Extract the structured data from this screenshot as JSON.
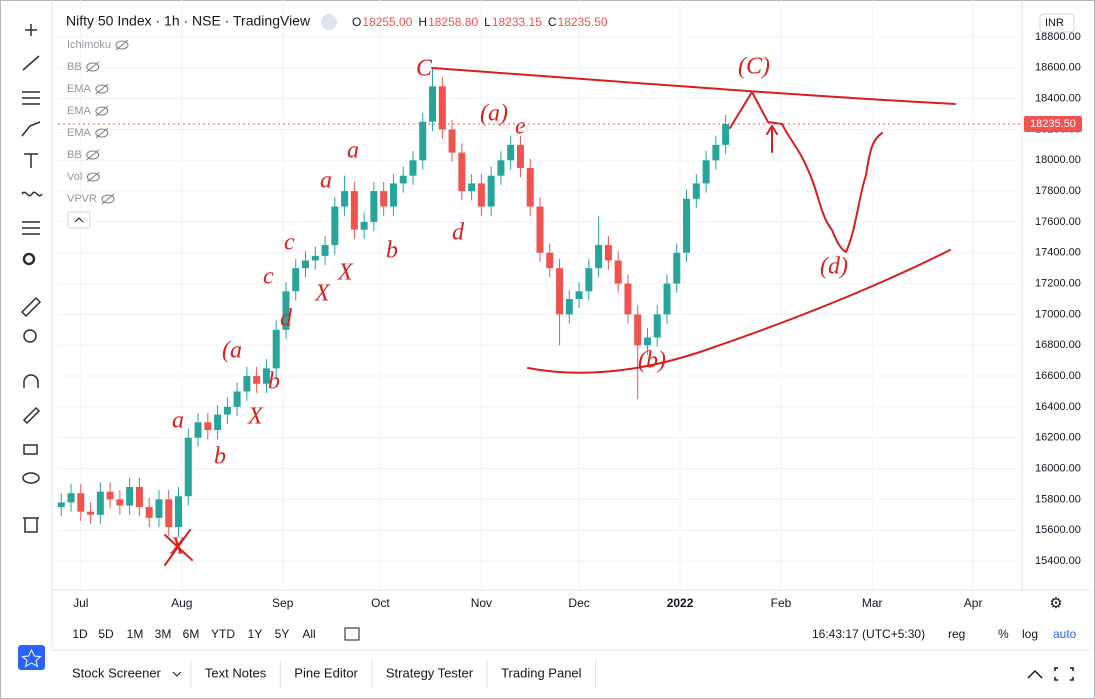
{
  "header": {
    "title": "Nifty 50 Index · 1h · NSE · TradingView",
    "ohlc": [
      {
        "label": "O",
        "value": "18255.00"
      },
      {
        "label": "H",
        "value": "18258.80"
      },
      {
        "label": "L",
        "value": "18233.15"
      },
      {
        "label": "C",
        "value": "18235.50"
      }
    ]
  },
  "indicators": [
    "Ichimoku",
    "BB",
    "EMA",
    "EMA",
    "EMA",
    "BB",
    "Vol",
    "VPVR"
  ],
  "currency": "INR",
  "chart_data": {
    "type": "candlestick",
    "x": [
      -6,
      -3,
      0,
      3,
      6,
      9,
      12,
      15,
      18,
      21,
      24,
      27,
      30,
      33,
      36,
      39,
      42,
      45,
      48,
      51,
      54,
      57,
      60,
      63,
      66,
      69,
      72,
      75,
      78,
      81,
      84,
      87,
      90,
      93,
      96,
      99,
      102,
      105,
      108,
      111,
      114,
      117,
      120,
      123,
      126,
      129,
      132,
      135,
      138,
      141,
      144,
      147,
      150,
      153,
      156,
      159,
      162,
      165,
      168,
      171,
      174,
      177,
      180,
      183,
      186,
      189,
      192,
      195,
      198
    ],
    "open": [
      15750,
      15780,
      15840,
      15720,
      15700,
      15850,
      15800,
      15760,
      15880,
      15750,
      15680,
      15800,
      15620,
      15820,
      16200,
      16300,
      16250,
      16350,
      16400,
      16500,
      16600,
      16550,
      16650,
      16900,
      17150,
      17300,
      17350,
      17380,
      17450,
      17700,
      17800,
      17550,
      17600,
      17800,
      17700,
      17850,
      17900,
      18000,
      18250,
      18480,
      18200,
      18050,
      17800,
      17850,
      17700,
      17900,
      18000,
      18100,
      17950,
      17700,
      17400,
      17300,
      17000,
      17100,
      17150,
      17300,
      17450,
      17350,
      17200,
      17000,
      16800,
      16850,
      17000,
      17200,
      17400,
      17750,
      17850,
      18000,
      18100
    ],
    "high": [
      15840,
      15900,
      15900,
      15780,
      15910,
      15910,
      15860,
      15940,
      15940,
      15810,
      15860,
      15860,
      15880,
      16260,
      16360,
      16360,
      16410,
      16460,
      16560,
      16660,
      16660,
      16710,
      16960,
      17210,
      17360,
      17410,
      17440,
      17510,
      17760,
      17900,
      17860,
      17660,
      17860,
      17860,
      17910,
      17960,
      18060,
      18310,
      18600,
      18540,
      18260,
      18110,
      17910,
      17910,
      17960,
      18060,
      18160,
      18160,
      18010,
      17760,
      17460,
      17360,
      17160,
      17210,
      17360,
      17640,
      17510,
      17410,
      17260,
      17060,
      16910,
      17060,
      17260,
      17460,
      17810,
      17910,
      18060,
      18160,
      18295
    ],
    "low": [
      15690,
      15720,
      15660,
      15640,
      15640,
      15740,
      15700,
      15700,
      15690,
      15620,
      15620,
      15560,
      15560,
      15760,
      16140,
      16190,
      16190,
      16290,
      16340,
      16440,
      16490,
      16490,
      16590,
      16840,
      17090,
      17240,
      17290,
      17320,
      17390,
      17640,
      17490,
      17490,
      17540,
      17640,
      17640,
      17790,
      17840,
      17940,
      18190,
      18140,
      17990,
      17740,
      17740,
      17640,
      17640,
      17840,
      17940,
      17890,
      17640,
      17340,
      17240,
      16800,
      16940,
      17040,
      17090,
      17240,
      17290,
      17140,
      16940,
      16450,
      16740,
      16790,
      16940,
      17140,
      17340,
      17690,
      17790,
      17940,
      18040
    ],
    "close": [
      15780,
      15840,
      15720,
      15700,
      15850,
      15800,
      15760,
      15880,
      15750,
      15680,
      15800,
      15620,
      15820,
      16200,
      16300,
      16250,
      16350,
      16400,
      16500,
      16600,
      16550,
      16650,
      16900,
      17150,
      17300,
      17350,
      17380,
      17450,
      17700,
      17800,
      17550,
      17600,
      17800,
      17700,
      17850,
      17900,
      18000,
      18250,
      18480,
      18200,
      18050,
      17800,
      17850,
      17700,
      17900,
      18000,
      18100,
      17950,
      17700,
      17400,
      17300,
      17000,
      17100,
      17150,
      17300,
      17450,
      17350,
      17200,
      17000,
      16800,
      16850,
      17000,
      17200,
      17400,
      17750,
      17850,
      18000,
      18100,
      18235
    ],
    "up_color": "#26a69a",
    "down_color": "#ef5350",
    "xlim": [
      -7,
      289
    ],
    "xticks": [
      {
        "value": 0,
        "label": "Jul"
      },
      {
        "value": 31,
        "label": "Aug"
      },
      {
        "value": 62,
        "label": "Sep"
      },
      {
        "value": 92,
        "label": "Oct"
      },
      {
        "value": 123,
        "label": "Nov"
      },
      {
        "value": 153,
        "label": "Dec"
      },
      {
        "value": 184,
        "label": "2022"
      },
      {
        "value": 215,
        "label": "Feb"
      },
      {
        "value": 243,
        "label": "Mar"
      },
      {
        "value": 274,
        "label": "Apr"
      }
    ],
    "ylim": [
      15400,
      18800
    ],
    "yticks": [
      {
        "value": 15400,
        "label": "15400.00"
      },
      {
        "value": 15600,
        "label": "15600.00"
      },
      {
        "value": 15800,
        "label": "15800.00"
      },
      {
        "value": 16000,
        "label": "16000.00"
      },
      {
        "value": 16200,
        "label": "16200.00"
      },
      {
        "value": 16400,
        "label": "16400.00"
      },
      {
        "value": 16600,
        "label": "16600.00"
      },
      {
        "value": 16800,
        "label": "16800.00"
      },
      {
        "value": 17000,
        "label": "17000.00"
      },
      {
        "value": 17200,
        "label": "17200.00"
      },
      {
        "value": 17400,
        "label": "17400.00"
      },
      {
        "value": 17600,
        "label": "17600.00"
      },
      {
        "value": 17800,
        "label": "17800.00"
      },
      {
        "value": 18000,
        "label": "18000.00"
      },
      {
        "value": 18200,
        "label": "18200.00"
      },
      {
        "value": 18400,
        "label": "18400.00"
      },
      {
        "value": 18600,
        "label": "18600.00"
      },
      {
        "value": 18800,
        "label": "18800.00"
      }
    ],
    "last_price": {
      "value": 18235.5,
      "label": "18235.50"
    },
    "annotations": [
      "X",
      "a",
      "b",
      "(a",
      "b",
      "X",
      "c",
      "d",
      "X",
      "X",
      "c",
      "a",
      "a",
      "b",
      "d",
      "C",
      "(a)",
      "e",
      "(C)",
      "(b)",
      "(d)"
    ]
  },
  "timeframes": [
    "1D",
    "5D",
    "1M",
    "3M",
    "6M",
    "YTD",
    "1Y",
    "5Y",
    "All"
  ],
  "status": {
    "time": "16:43:17 (UTC+5:30)",
    "reg": "reg",
    "percent": "%",
    "log": "log",
    "auto": "auto"
  },
  "tabs": [
    "Stock Screener",
    "Text Notes",
    "Pine Editor",
    "Strategy Tester",
    "Trading Panel"
  ]
}
